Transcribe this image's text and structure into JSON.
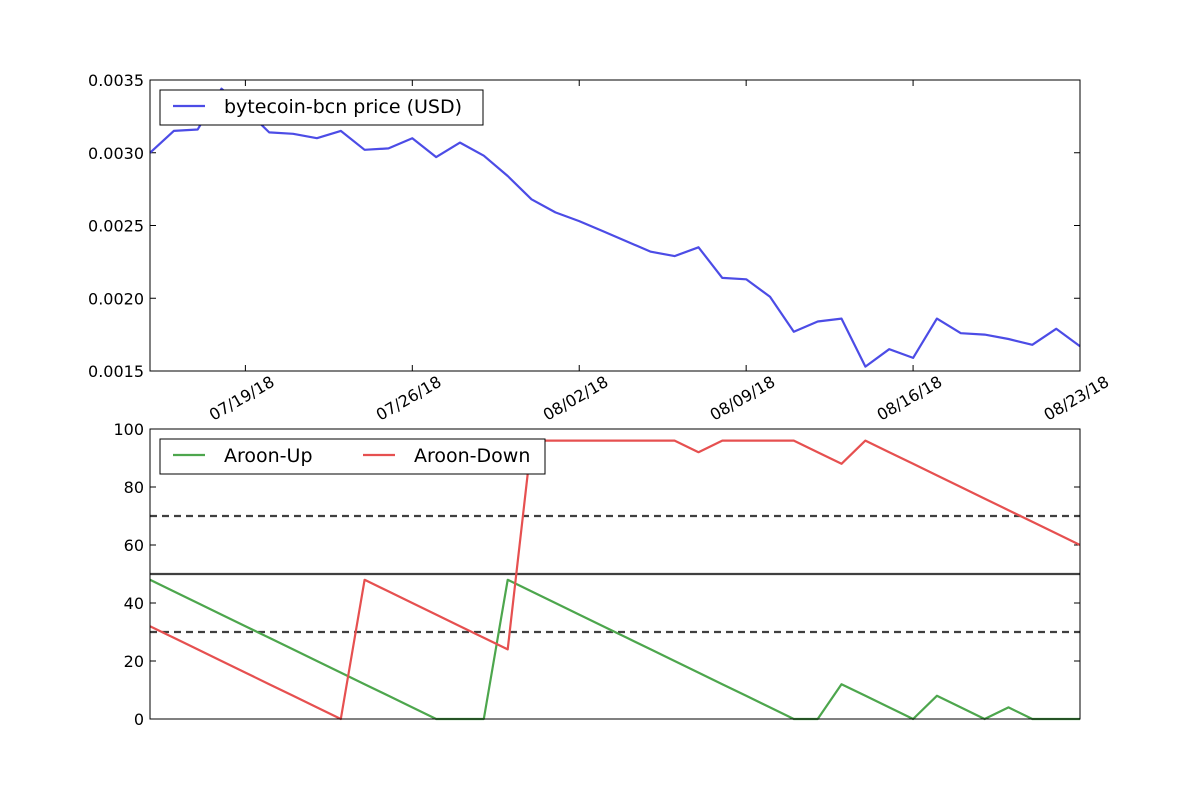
{
  "chart_data": [
    {
      "type": "line",
      "title": "",
      "xlabel": "",
      "ylabel": "",
      "x_tick_labels": [
        "07/19/18",
        "07/26/18",
        "08/02/18",
        "08/09/18",
        "08/16/18",
        "08/23/18"
      ],
      "y_tick_labels": [
        "0.0015",
        "0.0020",
        "0.0025",
        "0.0030",
        "0.0035"
      ],
      "ylim": [
        0.0015,
        0.0035
      ],
      "legend_placement": "upper-left",
      "series": [
        {
          "name": "bytecoin-bcn price (USD)",
          "color": "#4c4ce6",
          "values": [
            0.003,
            0.00315,
            0.00316,
            0.00344,
            0.0033,
            0.00314,
            0.00313,
            0.0031,
            0.00315,
            0.00302,
            0.00303,
            0.0031,
            0.00297,
            0.00307,
            0.00298,
            0.00284,
            0.00268,
            0.00259,
            0.00253,
            0.00246,
            0.00239,
            0.00232,
            0.00229,
            0.00235,
            0.00214,
            0.00213,
            0.00201,
            0.00177,
            0.00184,
            0.00186,
            0.00153,
            0.00165,
            0.00159,
            0.00186,
            0.00176,
            0.00175,
            0.00172,
            0.00168,
            0.00179,
            0.00167
          ]
        }
      ]
    },
    {
      "type": "line",
      "title": "",
      "xlabel": "",
      "ylabel": "",
      "y_tick_labels": [
        "0",
        "20",
        "40",
        "60",
        "80",
        "100"
      ],
      "ylim": [
        0,
        100
      ],
      "legend_placement": "upper-left",
      "reference_lines": [
        {
          "value": 70,
          "style": "dashed",
          "color": "#404040"
        },
        {
          "value": 50,
          "style": "solid",
          "color": "#404040"
        },
        {
          "value": 30,
          "style": "dashed",
          "color": "#404040"
        }
      ],
      "series": [
        {
          "name": "Aroon-Up",
          "color": "#4da64d",
          "values": [
            48,
            44,
            40,
            36,
            32,
            28,
            24,
            20,
            16,
            12,
            8,
            4,
            0,
            0,
            0,
            48,
            44,
            40,
            36,
            32,
            28,
            24,
            20,
            16,
            12,
            8,
            4,
            0,
            0,
            12,
            8,
            4,
            0,
            8,
            4,
            0,
            4,
            0,
            0,
            0
          ]
        },
        {
          "name": "Aroon-Down",
          "color": "#e65050",
          "values": [
            32,
            28,
            24,
            20,
            16,
            12,
            8,
            4,
            0,
            48,
            44,
            40,
            36,
            32,
            28,
            24,
            96,
            96,
            96,
            96,
            96,
            96,
            96,
            92,
            96,
            96,
            96,
            96,
            92,
            88,
            96,
            92,
            88,
            84,
            80,
            76,
            72,
            68,
            64,
            60
          ]
        }
      ]
    }
  ]
}
